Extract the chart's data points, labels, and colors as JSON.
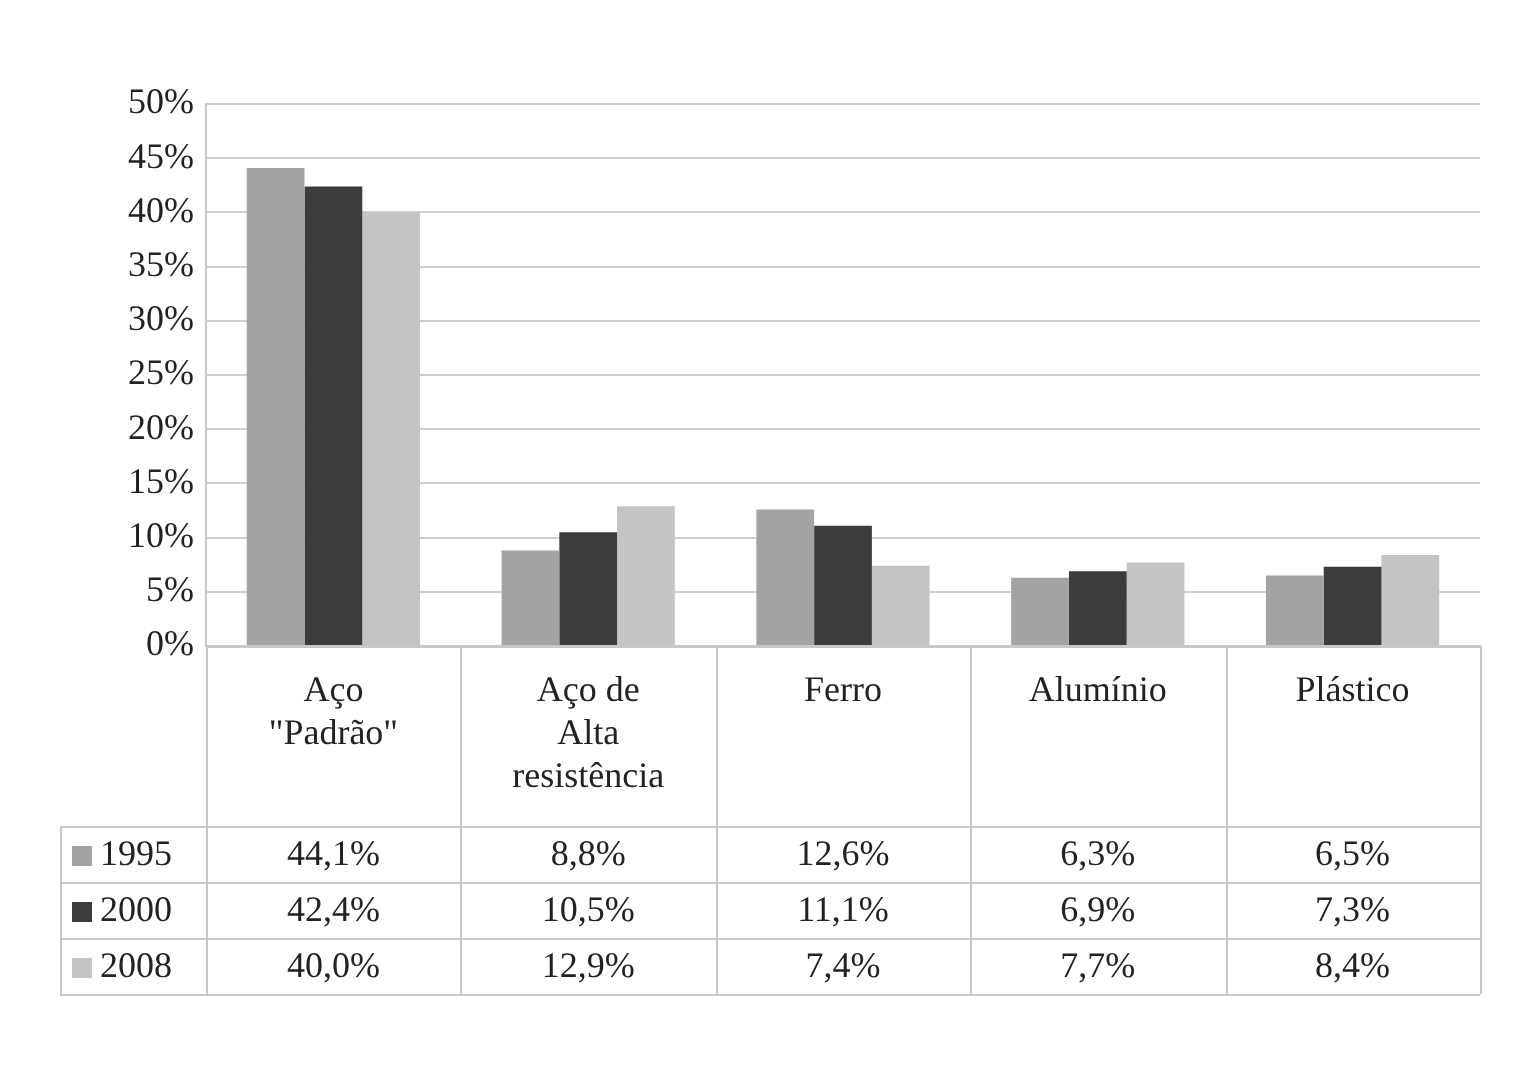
{
  "chart_data": {
    "type": "bar",
    "categories": [
      "Aço \"Padrão\"",
      "Aço de Alta resistência",
      "Ferro",
      "Alumínio",
      "Plástico"
    ],
    "series": [
      {
        "name": "1995",
        "color": "#a3a3a3",
        "values": [
          44.1,
          8.8,
          12.6,
          6.3,
          6.5
        ],
        "value_labels": [
          "44,1%",
          "8,8%",
          "12,6%",
          "6,3%",
          "6,5%"
        ]
      },
      {
        "name": "2000",
        "color": "#3c3c3c",
        "values": [
          42.4,
          10.5,
          11.1,
          6.9,
          7.3
        ],
        "value_labels": [
          "42,4%",
          "10,5%",
          "11,1%",
          "6,9%",
          "7,3%"
        ]
      },
      {
        "name": "2008",
        "color": "#c4c4c4",
        "values": [
          40.0,
          12.9,
          7.4,
          7.7,
          8.4
        ],
        "value_labels": [
          "40,0%",
          "12,9%",
          "7,4%",
          "7,7%",
          "8,4%"
        ]
      }
    ],
    "ylim": [
      0,
      50
    ],
    "yticks": [
      {
        "value": 0,
        "label": "0%"
      },
      {
        "value": 5,
        "label": "5%"
      },
      {
        "value": 10,
        "label": "10%"
      },
      {
        "value": 15,
        "label": "15%"
      },
      {
        "value": 20,
        "label": "20%"
      },
      {
        "value": 25,
        "label": "25%"
      },
      {
        "value": 30,
        "label": "30%"
      },
      {
        "value": 35,
        "label": "35%"
      },
      {
        "value": 40,
        "label": "40%"
      },
      {
        "value": 45,
        "label": "45%"
      },
      {
        "value": 50,
        "label": "50%"
      }
    ],
    "grid": "y",
    "legend": "bottom"
  }
}
